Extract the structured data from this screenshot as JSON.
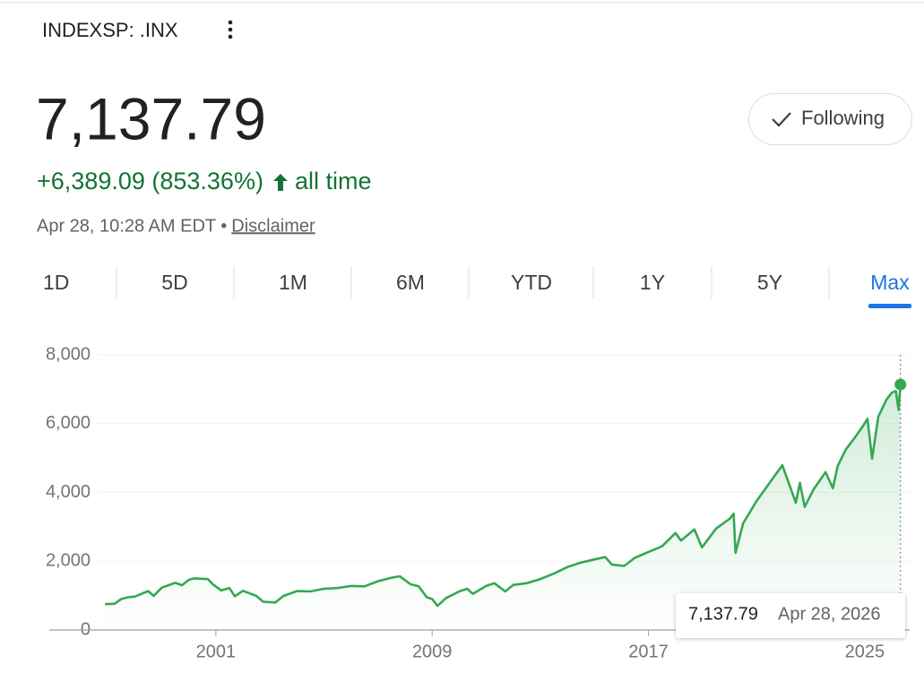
{
  "header": {
    "symbol": "INDEXSP: .INX",
    "price": "7,137.79",
    "change": "+6,389.09 (853.36%)",
    "period": "all time",
    "timestamp": "Apr 28, 10:28 AM EDT •",
    "disclaimer": "Disclaimer",
    "follow_button": "Following"
  },
  "tabs": [
    "1D",
    "5D",
    "1M",
    "6M",
    "YTD",
    "1Y",
    "5Y",
    "Max"
  ],
  "active_tab": "Max",
  "chart_data": {
    "type": "line",
    "series": [
      {
        "name": "INDEXSP: .INX",
        "color": "#34a853",
        "x": [
          1996.9,
          1997.25,
          1997.5,
          1997.75,
          1998.0,
          1998.5,
          1998.7,
          1999.0,
          1999.5,
          1999.75,
          2000.0,
          2000.2,
          2000.7,
          2000.9,
          2001.2,
          2001.5,
          2001.7,
          2002.0,
          2002.5,
          2002.75,
          2003.2,
          2003.5,
          2004.0,
          2004.5,
          2005.0,
          2005.5,
          2006.0,
          2006.5,
          2007.0,
          2007.5,
          2007.8,
          2008.2,
          2008.5,
          2008.8,
          2009.0,
          2009.2,
          2009.5,
          2010.0,
          2010.3,
          2010.5,
          2011.0,
          2011.3,
          2011.7,
          2012.0,
          2012.5,
          2013.0,
          2013.5,
          2014.0,
          2014.5,
          2015.0,
          2015.4,
          2015.65,
          2016.1,
          2016.5,
          2017.0,
          2017.5,
          2018.0,
          2018.2,
          2018.7,
          2018.98,
          2019.5,
          2020.0,
          2020.15,
          2020.22,
          2020.5,
          2021.0,
          2021.5,
          2021.95,
          2022.45,
          2022.6,
          2022.78,
          2023.1,
          2023.55,
          2023.82,
          2024.0,
          2024.3,
          2024.6,
          2024.95,
          2025.1,
          2025.27,
          2025.5,
          2025.8,
          2026.0,
          2026.15,
          2026.25,
          2026.32
        ],
        "values": [
          750,
          760,
          900,
          950,
          970,
          1130,
          990,
          1230,
          1370,
          1300,
          1460,
          1500,
          1480,
          1320,
          1150,
          1220,
          980,
          1140,
          990,
          820,
          800,
          990,
          1130,
          1120,
          1200,
          1220,
          1280,
          1270,
          1420,
          1520,
          1560,
          1330,
          1270,
          950,
          900,
          700,
          920,
          1120,
          1200,
          1050,
          1280,
          1360,
          1120,
          1310,
          1360,
          1480,
          1640,
          1830,
          1960,
          2050,
          2120,
          1900,
          1860,
          2100,
          2270,
          2430,
          2820,
          2600,
          2920,
          2400,
          2950,
          3230,
          3380,
          2240,
          3100,
          3750,
          4300,
          4790,
          3700,
          4280,
          3580,
          4080,
          4590,
          4120,
          4770,
          5250,
          5560,
          5950,
          6140,
          4980,
          6200,
          6700,
          6900,
          6950,
          6400,
          7137.79
        ]
      }
    ],
    "xlim": [
      1994.84,
      2026.66
    ],
    "xticks": [
      2001,
      2009,
      2017,
      2025
    ],
    "ylim": [
      0,
      8000
    ],
    "yticks": [
      0,
      {
        "value": 2000,
        "label": "2,000"
      },
      {
        "value": 4000,
        "label": "4,000"
      },
      {
        "value": 6000,
        "label": "6,000"
      },
      {
        "value": 8000,
        "label": "8,000"
      }
    ],
    "grid": true,
    "tooltip": {
      "value": "7,137.79",
      "date": "Apr 28, 2026"
    }
  }
}
